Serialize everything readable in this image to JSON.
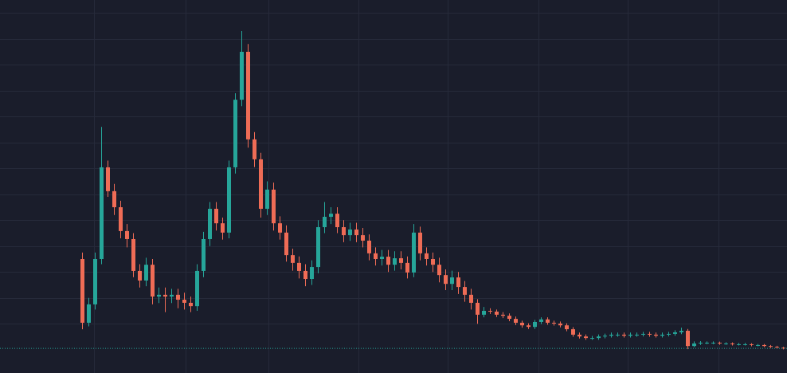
{
  "chart_data": {
    "type": "candlestick",
    "open": [
      3.5,
      1.04,
      1.75,
      3.5,
      7.04,
      6.12,
      5.5,
      4.58,
      4.27,
      3.04,
      2.67,
      3.28,
      2.05,
      2.12,
      2.05,
      2.12,
      1.93,
      1.81,
      1.68,
      3.04,
      4.27,
      5.44,
      4.88,
      4.52,
      7.04,
      9.65,
      11.5,
      8.12,
      7.35,
      5.44,
      6.18,
      4.88,
      4.52,
      3.65,
      3.35,
      3.04,
      2.73,
      3.19,
      4.73,
      5.13,
      5.25,
      4.73,
      4.42,
      4.64,
      4.42,
      4.21,
      3.72,
      3.5,
      3.59,
      3.28,
      3.53,
      3.35,
      2.98,
      4.52,
      3.72,
      3.5,
      3.28,
      2.88,
      2.54,
      2.79,
      2.42,
      2.12,
      1.81,
      1.35,
      1.5,
      1.47,
      1.35,
      1.31,
      1.19,
      1.04,
      0.94,
      0.88,
      1.07,
      1.17,
      1.04,
      1.01,
      0.94,
      0.79,
      0.58,
      0.51,
      0.45,
      0.45,
      0.51,
      0.54,
      0.58,
      0.58,
      0.54,
      0.58,
      0.58,
      0.61,
      0.58,
      0.54,
      0.58,
      0.61,
      0.67,
      0.73,
      0.14,
      0.24,
      0.27,
      0.27,
      0.27,
      0.24,
      0.24,
      0.21,
      0.21,
      0.21,
      0.18,
      0.18,
      0.14,
      0.11,
      0.08
    ],
    "high": [
      3.75,
      2.0,
      3.75,
      8.6,
      7.3,
      6.4,
      5.75,
      4.85,
      4.5,
      3.3,
      3.55,
      3.5,
      2.4,
      2.4,
      2.35,
      2.35,
      2.2,
      2.05,
      3.3,
      4.55,
      5.7,
      5.7,
      5.1,
      7.3,
      9.9,
      12.3,
      11.8,
      8.4,
      7.6,
      6.5,
      6.45,
      5.15,
      4.8,
      3.9,
      3.6,
      3.3,
      3.45,
      5.0,
      5.7,
      5.5,
      5.5,
      5.0,
      4.9,
      4.9,
      4.7,
      4.45,
      3.95,
      3.85,
      3.85,
      3.8,
      3.8,
      3.6,
      4.85,
      4.75,
      3.95,
      3.75,
      3.55,
      3.1,
      3.05,
      3.0,
      2.65,
      2.35,
      1.95,
      1.65,
      1.6,
      1.55,
      1.45,
      1.4,
      1.28,
      1.12,
      1.02,
      1.15,
      1.25,
      1.25,
      1.12,
      1.09,
      1.02,
      0.87,
      0.66,
      0.59,
      0.53,
      0.59,
      0.62,
      0.66,
      0.66,
      0.66,
      0.66,
      0.66,
      0.69,
      0.69,
      0.66,
      0.66,
      0.69,
      0.75,
      0.85,
      0.8,
      0.32,
      0.33,
      0.32,
      0.32,
      0.31,
      0.29,
      0.28,
      0.26,
      0.26,
      0.25,
      0.22,
      0.22,
      0.18,
      0.15,
      0.11
    ],
    "low": [
      0.79,
      0.9,
      1.55,
      3.3,
      5.9,
      5.2,
      4.3,
      3.95,
      2.8,
      2.4,
      2.45,
      1.75,
      1.8,
      1.45,
      1.8,
      1.6,
      1.55,
      1.45,
      1.5,
      2.8,
      4.0,
      4.6,
      4.25,
      4.3,
      6.8,
      9.4,
      7.8,
      7.05,
      5.1,
      5.2,
      4.6,
      4.25,
      3.4,
      3.05,
      2.75,
      2.45,
      2.5,
      2.95,
      4.5,
      4.85,
      4.5,
      4.15,
      4.2,
      4.15,
      3.95,
      3.45,
      3.25,
      3.25,
      3.0,
      3.05,
      3.1,
      2.75,
      2.8,
      3.45,
      3.25,
      3.0,
      2.6,
      2.3,
      2.3,
      2.15,
      1.85,
      1.55,
      1.0,
      1.25,
      1.38,
      1.26,
      1.22,
      1.1,
      0.95,
      0.85,
      0.8,
      0.8,
      0.99,
      0.96,
      0.93,
      0.86,
      0.71,
      0.5,
      0.43,
      0.38,
      0.38,
      0.38,
      0.44,
      0.47,
      0.5,
      0.47,
      0.47,
      0.5,
      0.51,
      0.5,
      0.47,
      0.47,
      0.51,
      0.54,
      0.6,
      0.02,
      0.1,
      0.18,
      0.21,
      0.21,
      0.19,
      0.19,
      0.16,
      0.16,
      0.16,
      0.13,
      0.13,
      0.1,
      0.06,
      0.04,
      0.01
    ],
    "close": [
      1.04,
      1.75,
      3.5,
      7.04,
      6.12,
      5.5,
      4.58,
      4.27,
      3.04,
      2.67,
      3.28,
      2.05,
      2.12,
      2.05,
      2.12,
      1.93,
      1.81,
      1.68,
      3.04,
      4.27,
      5.44,
      4.88,
      4.52,
      7.04,
      9.65,
      11.5,
      8.12,
      7.35,
      5.44,
      6.18,
      4.88,
      4.52,
      3.65,
      3.35,
      3.04,
      2.73,
      3.19,
      4.73,
      5.13,
      5.25,
      4.73,
      4.42,
      4.64,
      4.42,
      4.21,
      3.72,
      3.5,
      3.59,
      3.28,
      3.53,
      3.35,
      2.98,
      4.52,
      3.72,
      3.5,
      3.28,
      2.88,
      2.54,
      2.79,
      2.42,
      2.12,
      1.81,
      1.35,
      1.5,
      1.47,
      1.35,
      1.31,
      1.19,
      1.04,
      0.94,
      0.88,
      1.07,
      1.17,
      1.04,
      1.01,
      0.94,
      0.79,
      0.58,
      0.51,
      0.45,
      0.45,
      0.51,
      0.54,
      0.58,
      0.58,
      0.54,
      0.58,
      0.58,
      0.61,
      0.58,
      0.54,
      0.58,
      0.61,
      0.67,
      0.73,
      0.14,
      0.24,
      0.27,
      0.27,
      0.27,
      0.24,
      0.24,
      0.21,
      0.21,
      0.21,
      0.18,
      0.18,
      0.14,
      0.11,
      0.08,
      0.05
    ],
    "up_color": "#26a69a",
    "down_color": "#ef6c56",
    "xlim": [
      -12.875,
      110.625
    ],
    "xticks": [
      1.9,
      16.25,
      29.25,
      43.4,
      57.4,
      71.6,
      85.6,
      99.9
    ],
    "ylim": [
      -0.9,
      13.5
    ],
    "yticks": [
      1,
      2,
      3,
      4,
      5,
      6,
      7,
      8,
      9,
      10,
      11,
      12,
      13
    ],
    "grid": true,
    "price_line": true
  }
}
